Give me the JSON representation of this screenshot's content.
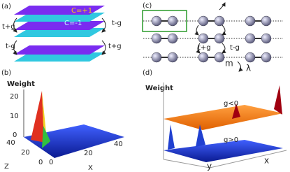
{
  "panels": {
    "a": {
      "label": "(a)",
      "layers": [
        "C=+1",
        "C=-1"
      ],
      "left": [
        "t+g",
        "t-g"
      ],
      "right": [
        "t-g",
        "t+g"
      ]
    },
    "b": {
      "label": "(b)",
      "axis_title": "Weight",
      "yticks": [
        "20",
        "10",
        "0"
      ],
      "zticks": [
        "40",
        "20",
        "0"
      ],
      "z_label": "Z",
      "xticks": [
        "0",
        "20",
        "40"
      ],
      "x_label": "X"
    },
    "c": {
      "label": "(c)",
      "hoppings": [
        "t+g",
        "t-g"
      ],
      "mass": "m",
      "lambda": "λ"
    },
    "d": {
      "label": "(d)",
      "axis_title": "Weight",
      "curves": [
        "g<0",
        "g>0"
      ],
      "y_label": "y",
      "x_label": "x"
    }
  }
}
